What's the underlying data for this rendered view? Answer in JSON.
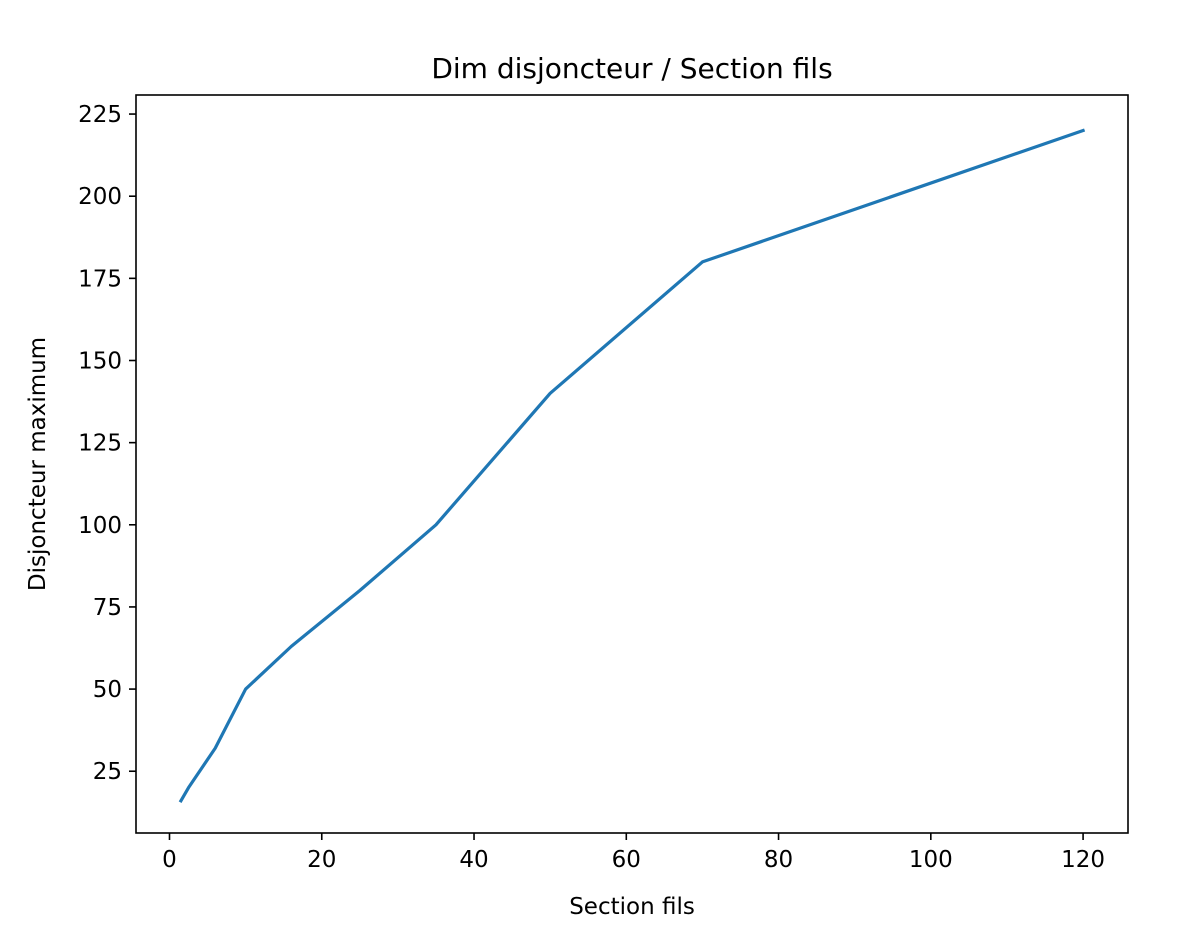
{
  "chart_data": {
    "type": "line",
    "title": "Dim disjoncteur / Section fils",
    "xlabel": "Section fils",
    "ylabel": "Disjoncteur maximum",
    "xlim": [
      -4.4,
      125.9
    ],
    "ylim": [
      6.2,
      230.8
    ],
    "xticks": [
      0,
      20,
      40,
      60,
      80,
      100,
      120
    ],
    "yticks": [
      25,
      50,
      75,
      100,
      125,
      150,
      175,
      200,
      225
    ],
    "grid": false,
    "series": [
      {
        "color": "#1f77b4",
        "x": [
          1.5,
          2.5,
          6,
          10,
          16,
          25,
          35,
          50,
          70,
          120
        ],
        "y": [
          16,
          20,
          32,
          50,
          63,
          80,
          100,
          140,
          180,
          220
        ]
      }
    ]
  }
}
